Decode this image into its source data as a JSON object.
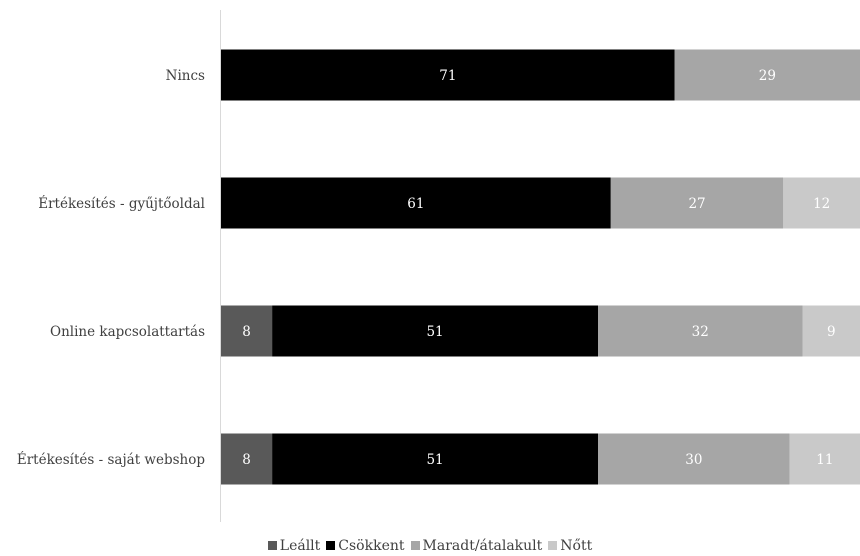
{
  "chart_data": {
    "type": "bar",
    "orientation": "horizontal",
    "stacked": true,
    "categories": [
      "Nincs",
      "Értékesítés - gyűjtőoldal",
      "Online kapcsolattartás",
      "Értékesítés - saját webshop"
    ],
    "series": [
      {
        "name": "Leállt",
        "values": [
          0,
          0,
          8,
          8
        ],
        "color": "#595959",
        "label_color": "#ffffff"
      },
      {
        "name": "Csökkent",
        "values": [
          71,
          61,
          51,
          51
        ],
        "color": "#000000",
        "label_color": "#ffffff"
      },
      {
        "name": "Maradt/átalakult",
        "values": [
          29,
          27,
          32,
          30
        ],
        "color": "#a6a6a6",
        "label_color": "#ffffff"
      },
      {
        "name": "Nőtt",
        "values": [
          0,
          12,
          9,
          11
        ],
        "color": "#c9c9c9",
        "label_color": "#ffffff"
      }
    ],
    "xlim": [
      0,
      100
    ],
    "grid": false,
    "legend_position": "bottom"
  }
}
